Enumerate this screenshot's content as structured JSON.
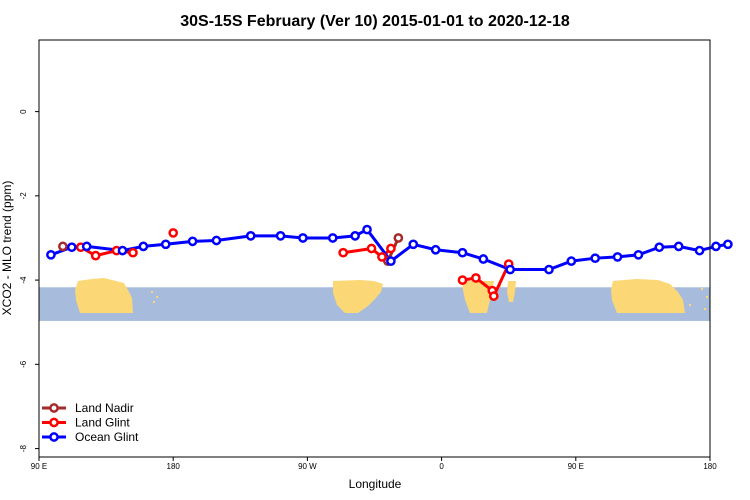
{
  "chart_data": {
    "type": "line",
    "title": "30S-15S February (Ver 10)   2015-01-01 to 2020-12-18",
    "xlabel": "Longitude",
    "ylabel": "XCO2 - MLO trend (ppm)",
    "xlim": [
      90,
      540
    ],
    "ylim": [
      -8.2,
      1.7
    ],
    "x_ticks": [
      {
        "value": 90,
        "label": "90 E"
      },
      {
        "value": 180,
        "label": "180"
      },
      {
        "value": 270,
        "label": "90 W"
      },
      {
        "value": 360,
        "label": "0"
      },
      {
        "value": 450,
        "label": "90 E"
      },
      {
        "value": 540,
        "label": "180"
      }
    ],
    "y_ticks": [
      {
        "value": 0,
        "label": "0"
      },
      {
        "value": -2,
        "label": "-2"
      },
      {
        "value": -4,
        "label": "-4"
      },
      {
        "value": -6,
        "label": "-6"
      },
      {
        "value": -8,
        "label": "-8"
      }
    ],
    "legend_position": "bottom-left",
    "background_map": {
      "lat_range": "30S-15S",
      "ocean_color": "#a7bcdc",
      "land_color": "#fbd776",
      "y_range": [
        -4.97,
        -4.17
      ]
    },
    "series": [
      {
        "name": "Land Nadir",
        "color": "#a52a2a",
        "points": [
          [
            106,
            -3.2
          ],
          [
            324,
            -3.55
          ],
          [
            331,
            -3.0
          ]
        ],
        "segments": [
          [
            [
              324,
              -3.55
            ],
            [
              331,
              -3.0
            ]
          ]
        ]
      },
      {
        "name": "Land Glint",
        "color": "#ff0000",
        "points": [
          [
            118,
            -3.22
          ],
          [
            128,
            -3.42
          ],
          [
            142,
            -3.3
          ],
          [
            153,
            -3.35
          ],
          [
            180,
            -2.88
          ],
          [
            294,
            -3.35
          ],
          [
            313,
            -3.25
          ],
          [
            320,
            -3.45
          ],
          [
            326,
            -3.25
          ],
          [
            374,
            -4.0
          ],
          [
            383,
            -3.95
          ],
          [
            394,
            -4.25
          ],
          [
            395,
            -4.38
          ],
          [
            405,
            -3.62
          ]
        ],
        "segments": [
          [
            [
              118,
              -3.22
            ],
            [
              128,
              -3.42
            ],
            [
              142,
              -3.3
            ],
            [
              153,
              -3.35
            ]
          ],
          [
            [
              294,
              -3.35
            ],
            [
              313,
              -3.25
            ],
            [
              320,
              -3.45
            ],
            [
              326,
              -3.25
            ]
          ],
          [
            [
              374,
              -4.0
            ],
            [
              383,
              -3.95
            ],
            [
              394,
              -4.25
            ]
          ],
          [
            [
              395,
              -4.38
            ],
            [
              405,
              -3.62
            ]
          ]
        ]
      },
      {
        "name": "Ocean Glint",
        "color": "#0000ff",
        "points": [
          [
            98,
            -3.4
          ],
          [
            112,
            -3.22
          ],
          [
            122,
            -3.2
          ],
          [
            146,
            -3.3
          ],
          [
            160,
            -3.2
          ],
          [
            175,
            -3.15
          ],
          [
            193,
            -3.08
          ],
          [
            209,
            -3.06
          ],
          [
            232,
            -2.95
          ],
          [
            252,
            -2.95
          ],
          [
            267,
            -3.0
          ],
          [
            287,
            -3.0
          ],
          [
            302,
            -2.95
          ],
          [
            310,
            -2.8
          ],
          [
            326,
            -3.55
          ],
          [
            341,
            -3.15
          ],
          [
            356,
            -3.28
          ],
          [
            374,
            -3.35
          ],
          [
            388,
            -3.5
          ],
          [
            406,
            -3.75
          ],
          [
            432,
            -3.75
          ],
          [
            447,
            -3.55
          ],
          [
            463,
            -3.48
          ],
          [
            478,
            -3.45
          ],
          [
            492,
            -3.4
          ],
          [
            506,
            -3.22
          ],
          [
            519,
            -3.2
          ],
          [
            533,
            -3.3
          ],
          [
            544,
            -3.2
          ],
          [
            552,
            -3.15
          ]
        ],
        "segments": []
      }
    ]
  }
}
